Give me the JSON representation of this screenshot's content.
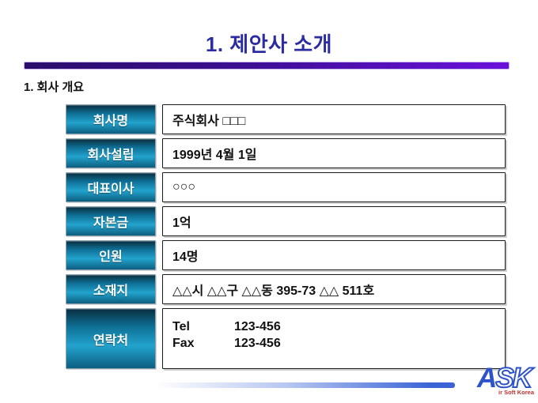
{
  "slide": {
    "title": "1. 제안사 소개",
    "section_heading": "1. 회사 개요"
  },
  "company_table": {
    "rows": [
      {
        "label": "회사명",
        "value": "주식회사 □□□"
      },
      {
        "label": "회사설립",
        "value": "1999년 4월 1일"
      },
      {
        "label": "대표이사",
        "value": "○○○"
      },
      {
        "label": "자본금",
        "value": "1억"
      },
      {
        "label": "인원",
        "value": "14명"
      },
      {
        "label": "소재지",
        "value": "△△시 △△구 △△동 395-73 △△ 511호"
      }
    ],
    "contact_row": {
      "label": "연락처",
      "lines": [
        {
          "label": "Tel",
          "value": "123-456"
        },
        {
          "label": "Fax",
          "value": "123-456"
        }
      ]
    }
  },
  "logo": {
    "a": "A",
    "sk": "SK",
    "tagline": "ir Soft Korea"
  },
  "colors": {
    "title_text": "#2c2ca2",
    "title_bar_left": "#2a0e6a",
    "title_bar_right": "#6b10dc",
    "header_cell_top": "#0a2e40",
    "header_cell_light": "#22a3cd",
    "header_cell_bottom": "#0d5e80",
    "bottom_bar_blue": "#3b63d6",
    "logo_blue": "#2e53c8",
    "logo_tagline_red": "#c23030"
  }
}
